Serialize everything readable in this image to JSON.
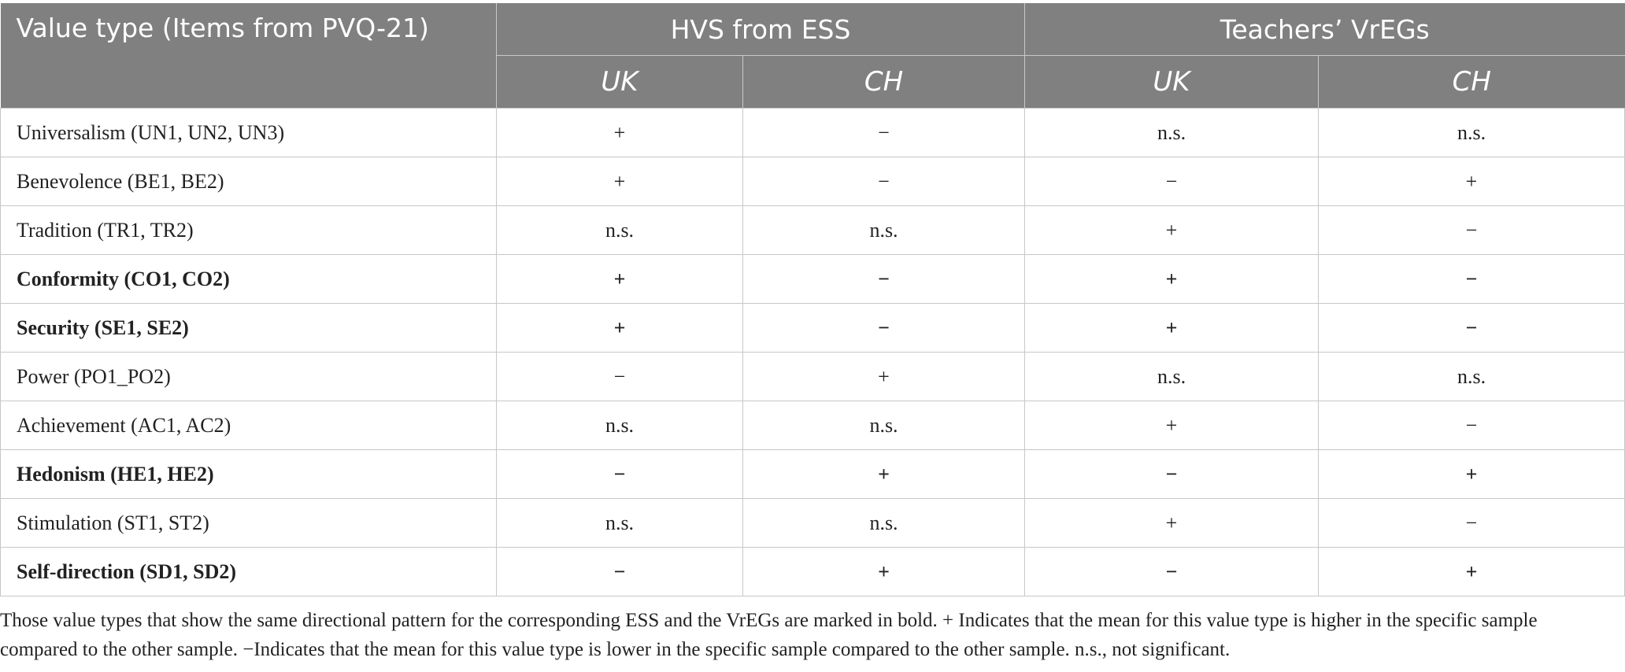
{
  "table": {
    "header": {
      "col0": "Value type (Items from PVQ-21)",
      "group1": "HVS from ESS",
      "group2": "Teachers’ VrEGs",
      "sub": [
        "UK",
        "CH",
        "UK",
        "CH"
      ]
    },
    "rows": [
      {
        "label": "Universalism (UN1, UN2, UN3)",
        "bold": false,
        "cells": [
          "+",
          "−",
          "n.s.",
          "n.s."
        ]
      },
      {
        "label": "Benevolence (BE1, BE2)",
        "bold": false,
        "cells": [
          "+",
          "−",
          "−",
          "+"
        ]
      },
      {
        "label": "Tradition (TR1, TR2)",
        "bold": false,
        "cells": [
          "n.s.",
          "n.s.",
          "+",
          "−"
        ]
      },
      {
        "label": "Conformity (CO1, CO2)",
        "bold": true,
        "cells": [
          "+",
          "−",
          "+",
          "−"
        ]
      },
      {
        "label": "Security (SE1, SE2)",
        "bold": true,
        "cells": [
          "+",
          "−",
          "+",
          "−"
        ]
      },
      {
        "label": "Power (PO1_PO2)",
        "bold": false,
        "cells": [
          "−",
          "+",
          "n.s.",
          "n.s."
        ]
      },
      {
        "label": "Achievement (AC1, AC2)",
        "bold": false,
        "cells": [
          "n.s.",
          "n.s.",
          "+",
          "−"
        ]
      },
      {
        "label": "Hedonism (HE1, HE2)",
        "bold": true,
        "cells": [
          "−",
          "+",
          "−",
          "+"
        ]
      },
      {
        "label": "Stimulation (ST1, ST2)",
        "bold": false,
        "cells": [
          "n.s.",
          "n.s.",
          "+",
          "−"
        ]
      },
      {
        "label": "Self-direction (SD1, SD2)",
        "bold": true,
        "cells": [
          "−",
          "+",
          "−",
          "+"
        ]
      }
    ]
  },
  "footnote": "Those value types that show the same directional pattern for the corresponding ESS and the VrEGs are marked in bold. + Indicates that the mean for this value type is higher in the specific sample compared to the other sample. −Indicates that the mean for this value type is lower in the specific sample compared to the other sample. n.s., not significant."
}
